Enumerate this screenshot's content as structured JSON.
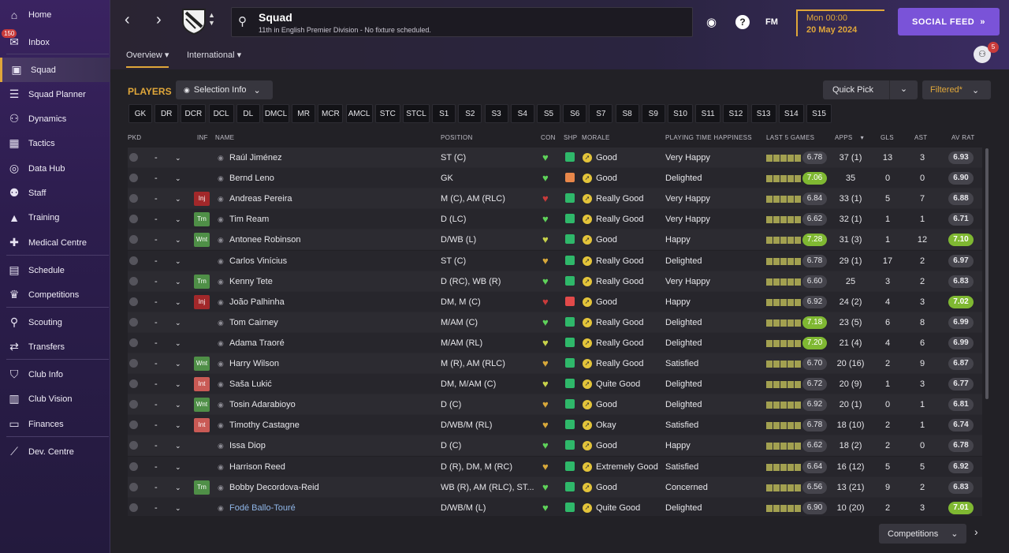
{
  "sidebar": {
    "inbox_badge": "150",
    "items": [
      {
        "label": "Home",
        "icon": "home-icon",
        "glyph": "⌂"
      },
      {
        "label": "Inbox",
        "icon": "inbox-icon",
        "glyph": "✉"
      },
      {
        "label": "Squad",
        "icon": "shirt-icon",
        "glyph": "▣"
      },
      {
        "label": "Squad Planner",
        "icon": "clipboard-icon",
        "glyph": "☰"
      },
      {
        "label": "Dynamics",
        "icon": "dynamics-icon",
        "glyph": "⚇"
      },
      {
        "label": "Tactics",
        "icon": "tactics-board-icon",
        "glyph": "▦"
      },
      {
        "label": "Data Hub",
        "icon": "data-hub-icon",
        "glyph": "◎"
      },
      {
        "label": "Staff",
        "icon": "staff-icon",
        "glyph": "⚉"
      },
      {
        "label": "Training",
        "icon": "training-cone-icon",
        "glyph": "▲"
      },
      {
        "label": "Medical Centre",
        "icon": "medical-kit-icon",
        "glyph": "✚"
      },
      {
        "label": "Schedule",
        "icon": "calendar-icon",
        "glyph": "▤"
      },
      {
        "label": "Competitions",
        "icon": "trophy-icon",
        "glyph": "♛"
      },
      {
        "label": "Scouting",
        "icon": "magnifier-icon",
        "glyph": "⚲"
      },
      {
        "label": "Transfers",
        "icon": "transfer-arrows-icon",
        "glyph": "⇄"
      },
      {
        "label": "Club Info",
        "icon": "club-shield-icon",
        "glyph": "⛉"
      },
      {
        "label": "Club Vision",
        "icon": "briefcase-icon",
        "glyph": "▥"
      },
      {
        "label": "Finances",
        "icon": "money-icon",
        "glyph": "▭"
      },
      {
        "label": "Dev. Centre",
        "icon": "dev-centre-icon",
        "glyph": "⟋"
      }
    ]
  },
  "header": {
    "title": "Squad",
    "subtitle": "11th in English Premier Division - No fixture scheduled.",
    "tabs": [
      "Overview",
      "International"
    ],
    "fm_label": "FM",
    "time": "Mon 00:00",
    "date": "20 May 2024",
    "social_label": "SOCIAL FEED",
    "people_badge": "5"
  },
  "toolbar": {
    "players_label": "PLAYERS",
    "selection_info": "Selection Info",
    "quick_pick": "Quick Pick",
    "filtered": "Filtered*"
  },
  "positions": [
    "GK",
    "DR",
    "DCR",
    "DCL",
    "DL",
    "DMCL",
    "MR",
    "MCR",
    "AMCL",
    "STC",
    "STCL",
    "S1",
    "S2",
    "S3",
    "S4",
    "S5",
    "S6",
    "S7",
    "S8",
    "S9",
    "S10",
    "S11",
    "S12",
    "S13",
    "S14",
    "S15"
  ],
  "columns": {
    "pkd": "PKD",
    "inf": "INF",
    "name": "NAME",
    "position": "POSITION",
    "con": "CON",
    "shp": "SHP",
    "morale": "MORALE",
    "pth": "PLAYING TIME HAPPINESS",
    "last5": "LAST 5 GAMES",
    "apps": "APPS",
    "gls": "GLS",
    "ast": "AST",
    "avrat": "AV RAT"
  },
  "players": [
    {
      "name": "Raúl Jiménez",
      "inf": "",
      "pos": "ST (C)",
      "morale": "Good",
      "pth": "Very Happy",
      "l5": "6.78",
      "apps": "37 (1)",
      "gls": "13",
      "ast": "3",
      "avr": "6.93",
      "shp": "#2fb86a",
      "con": "#5fd35a"
    },
    {
      "name": "Bernd Leno",
      "inf": "",
      "pos": "GK",
      "morale": "Good",
      "pth": "Delighted",
      "l5": "7.06",
      "apps": "35",
      "gls": "0",
      "ast": "0",
      "avr": "6.90",
      "shp": "#e8874a",
      "con": "#5fd35a"
    },
    {
      "name": "Andreas Pereira",
      "inf": "Inj",
      "pos": "M (C), AM (RLC)",
      "morale": "Really Good",
      "pth": "Very Happy",
      "l5": "6.84",
      "apps": "33 (1)",
      "gls": "5",
      "ast": "7",
      "avr": "6.88",
      "shp": "#2fb86a",
      "con": "#c93b3b"
    },
    {
      "name": "Tim Ream",
      "inf": "Trn",
      "pos": "D (LC)",
      "morale": "Really Good",
      "pth": "Very Happy",
      "l5": "6.62",
      "apps": "32 (1)",
      "gls": "1",
      "ast": "1",
      "avr": "6.71",
      "shp": "#2fb86a",
      "con": "#5fd35a"
    },
    {
      "name": "Antonee Robinson",
      "inf": "Wnt",
      "pos": "D/WB (L)",
      "morale": "Good",
      "pth": "Happy",
      "l5": "7.28",
      "apps": "31 (3)",
      "gls": "1",
      "ast": "12",
      "avr": "7.10",
      "shp": "#2fb86a",
      "con": "#c8d34a"
    },
    {
      "name": "Carlos Vinícius",
      "inf": "",
      "pos": "ST (C)",
      "morale": "Really Good",
      "pth": "Delighted",
      "l5": "6.78",
      "apps": "29 (1)",
      "gls": "17",
      "ast": "2",
      "avr": "6.97",
      "shp": "#2fb86a",
      "con": "#d8a83a"
    },
    {
      "name": "Kenny Tete",
      "inf": "Trn",
      "pos": "D (RC), WB (R)",
      "morale": "Really Good",
      "pth": "Very Happy",
      "l5": "6.60",
      "apps": "25",
      "gls": "3",
      "ast": "2",
      "avr": "6.83",
      "shp": "#2fb86a",
      "con": "#5fd35a"
    },
    {
      "name": "João Palhinha",
      "inf": "Inj",
      "pos": "DM, M (C)",
      "morale": "Good",
      "pth": "Happy",
      "l5": "6.92",
      "apps": "24 (2)",
      "gls": "4",
      "ast": "3",
      "avr": "7.02",
      "shp": "#e24a4a",
      "con": "#c93b3b"
    },
    {
      "name": "Tom Cairney",
      "inf": "",
      "pos": "M/AM (C)",
      "morale": "Really Good",
      "pth": "Delighted",
      "l5": "7.18",
      "apps": "23 (5)",
      "gls": "6",
      "ast": "8",
      "avr": "6.99",
      "shp": "#2fb86a",
      "con": "#5fd35a"
    },
    {
      "name": "Adama Traoré",
      "inf": "",
      "pos": "M/AM (RL)",
      "morale": "Really Good",
      "pth": "Delighted",
      "l5": "7.20",
      "apps": "21 (4)",
      "gls": "4",
      "ast": "6",
      "avr": "6.99",
      "shp": "#2fb86a",
      "con": "#c8d34a"
    },
    {
      "name": "Harry Wilson",
      "inf": "Wnt",
      "pos": "M (R), AM (RLC)",
      "morale": "Really Good",
      "pth": "Satisfied",
      "l5": "6.70",
      "apps": "20 (16)",
      "gls": "2",
      "ast": "9",
      "avr": "6.87",
      "shp": "#2fb86a",
      "con": "#d8a83a"
    },
    {
      "name": "Saša Lukić",
      "inf": "Int",
      "pos": "DM, M/AM (C)",
      "morale": "Quite Good",
      "pth": "Delighted",
      "l5": "6.72",
      "apps": "20 (9)",
      "gls": "1",
      "ast": "3",
      "avr": "6.77",
      "shp": "#2fb86a",
      "con": "#c8d34a"
    },
    {
      "name": "Tosin Adarabioyo",
      "inf": "Wnt",
      "pos": "D (C)",
      "morale": "Good",
      "pth": "Delighted",
      "l5": "6.92",
      "apps": "20 (1)",
      "gls": "0",
      "ast": "1",
      "avr": "6.81",
      "shp": "#2fb86a",
      "con": "#d8a83a"
    },
    {
      "name": "Timothy Castagne",
      "inf": "Int",
      "pos": "D/WB/M (RL)",
      "morale": "Okay",
      "pth": "Satisfied",
      "l5": "6.78",
      "apps": "18 (10)",
      "gls": "2",
      "ast": "1",
      "avr": "6.74",
      "shp": "#2fb86a",
      "con": "#d8a83a"
    },
    {
      "name": "Issa Diop",
      "inf": "",
      "pos": "D (C)",
      "morale": "Good",
      "pth": "Happy",
      "l5": "6.62",
      "apps": "18 (2)",
      "gls": "2",
      "ast": "0",
      "avr": "6.78",
      "shp": "#2fb86a",
      "con": "#5fd35a"
    },
    {
      "name": "Harrison Reed",
      "inf": "",
      "pos": "D (R), DM, M (RC)",
      "morale": "Extremely Good",
      "pth": "Satisfied",
      "l5": "6.64",
      "apps": "16 (12)",
      "gls": "5",
      "ast": "5",
      "avr": "6.92",
      "shp": "#2fb86a",
      "con": "#d8a83a"
    },
    {
      "name": "Bobby Decordova-Reid",
      "inf": "Trn",
      "pos": "WB (R), AM (RLC), ST...",
      "morale": "Good",
      "pth": "Concerned",
      "l5": "6.56",
      "apps": "13 (21)",
      "gls": "9",
      "ast": "2",
      "avr": "6.83",
      "shp": "#2fb86a",
      "con": "#5fd35a"
    },
    {
      "name": "Fodé Ballo-Touré",
      "inf": "",
      "pos": "D/WB/M (L)",
      "morale": "Quite Good",
      "pth": "Delighted",
      "l5": "6.90",
      "apps": "10 (20)",
      "gls": "2",
      "ast": "3",
      "avr": "7.01",
      "shp": "#2fb86a",
      "con": "#5fd35a"
    }
  ],
  "footer": {
    "competitions": "Competitions"
  }
}
